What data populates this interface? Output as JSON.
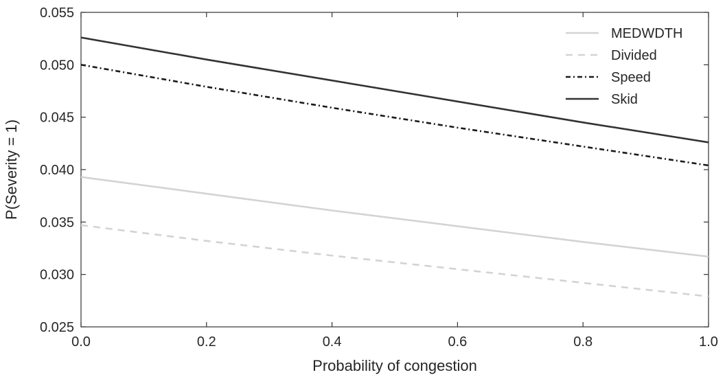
{
  "chart_data": {
    "type": "line",
    "title": "",
    "xlabel": "Probability of congestion",
    "ylabel": "P(Severity = 1)",
    "xlim": [
      0.0,
      1.0
    ],
    "ylim": [
      0.025,
      0.055
    ],
    "x_ticks": [
      0.0,
      0.2,
      0.4,
      0.6,
      0.8,
      1.0
    ],
    "x_tick_labels": [
      "0.0",
      "0.2",
      "0.4",
      "0.6",
      "0.8",
      "1.0"
    ],
    "y_ticks": [
      0.025,
      0.03,
      0.035,
      0.04,
      0.045,
      0.05,
      0.055
    ],
    "y_tick_labels": [
      "0.025",
      "0.030",
      "0.035",
      "0.040",
      "0.045",
      "0.050",
      "0.055"
    ],
    "grid": false,
    "legend_position": "top-right",
    "x": [
      0.0,
      0.2,
      0.4,
      0.6,
      0.8,
      1.0
    ],
    "series": [
      {
        "name": "MEDWDTH",
        "values": [
          0.0393,
          0.0377,
          0.0361,
          0.0346,
          0.0331,
          0.0317
        ],
        "color": "#d3d3d3",
        "style": "solid"
      },
      {
        "name": "Divided",
        "values": [
          0.0347,
          0.0332,
          0.0318,
          0.0305,
          0.0292,
          0.0279
        ],
        "color": "#d3d3d3",
        "style": "dashed"
      },
      {
        "name": "Speed",
        "values": [
          0.05,
          0.0479,
          0.0459,
          0.044,
          0.0422,
          0.0404
        ],
        "color": "#1a1a1a",
        "style": "dashdot"
      },
      {
        "name": "Skid",
        "values": [
          0.0526,
          0.0505,
          0.0485,
          0.0465,
          0.0445,
          0.0426
        ],
        "color": "#333333",
        "style": "solid"
      }
    ]
  }
}
